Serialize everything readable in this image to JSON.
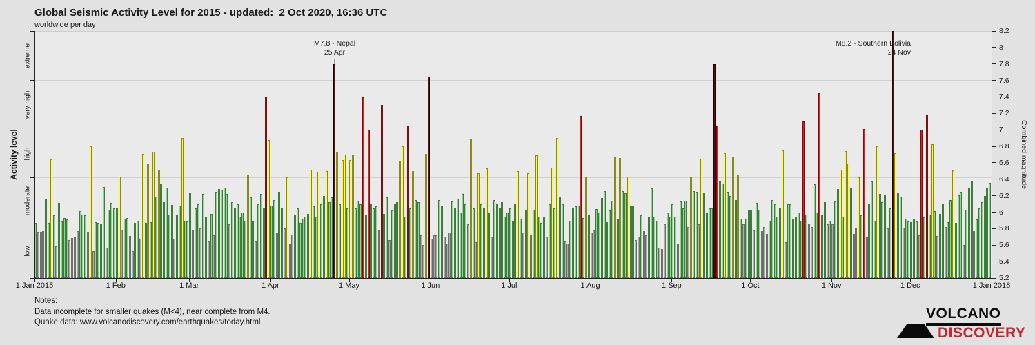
{
  "header": {
    "title": "Global Seismic Activity Level for 2015 - updated:  2 Oct 2020, 16:36 UTC",
    "subtitle": "worldwide per day"
  },
  "chart_data": {
    "type": "bar",
    "title": "Global Seismic Activity Level for 2015",
    "left_axis": {
      "label": "Activity level",
      "level_labels": [
        "extreme",
        "very high",
        "high",
        "moderate",
        "low"
      ],
      "level_boundaries_magnitude": [
        8.2,
        7.6,
        7.0,
        6.42,
        5.86,
        5.2
      ]
    },
    "right_axis": {
      "label": "Combined magnitude",
      "min": 5.2,
      "max": 8.2,
      "tick_step": 0.2
    },
    "level_colors": {
      "low": {
        "fill": "#adadad",
        "border": "#6e6e6e"
      },
      "moderate": {
        "fill": "#90d690",
        "border": "#3f7a3f"
      },
      "high": {
        "fill": "#ffff26",
        "border": "#8a8a1a"
      },
      "very_high": {
        "fill": "#e02020",
        "border": "#7c1010"
      },
      "extreme": {
        "fill": "#5a1212",
        "border": "#1d0505"
      }
    },
    "x_tick_labels": [
      "1 Jan 2015",
      "1 Feb",
      "1 Mar",
      "1 Apr",
      "1 May",
      "1 Jun",
      "1 Jul",
      "1 Aug",
      "1 Sep",
      "1 Oct",
      "1 Nov",
      "1 Dec",
      "1 Jan 2016"
    ],
    "month_start_day_index": [
      0,
      31,
      59,
      90,
      120,
      151,
      181,
      212,
      243,
      273,
      304,
      334,
      365
    ],
    "daily_values": [
      5.87,
      5.76,
      5.76,
      5.77,
      6.16,
      5.87,
      6.64,
      5.96,
      5.59,
      6.11,
      5.89,
      5.93,
      5.91,
      5.66,
      5.69,
      5.7,
      5.77,
      6.01,
      5.97,
      5.96,
      5.76,
      6.8,
      5.53,
      5.88,
      5.87,
      5.86,
      6.31,
      5.57,
      6.03,
      6.11,
      6.05,
      6.05,
      6.43,
      5.79,
      5.92,
      5.93,
      5.71,
      5.53,
      5.87,
      5.9,
      5.68,
      6.71,
      5.87,
      6.58,
      5.88,
      6.73,
      6.19,
      6.52,
      6.35,
      6.12,
      6.3,
      5.97,
      6.09,
      5.68,
      5.96,
      6.08,
      6.9,
      5.9,
      5.89,
      6.23,
      5.78,
      6.05,
      6.1,
      5.8,
      6.22,
      5.95,
      5.65,
      5.98,
      5.72,
      6.25,
      6.28,
      6.27,
      6.3,
      6.22,
      5.85,
      6.12,
      6.05,
      6.1,
      5.95,
      6.0,
      5.9,
      6.45,
      6.18,
      5.9,
      5.65,
      6.1,
      6.22,
      6.05,
      7.4,
      6.88,
      6.08,
      6.15,
      5.75,
      6.25,
      6.05,
      5.8,
      6.42,
      5.62,
      5.73,
      5.97,
      6.05,
      5.87,
      5.92,
      5.95,
      5.98,
      6.52,
      6.07,
      5.95,
      6.49,
      6.1,
      6.2,
      6.5,
      6.12,
      6.18,
      7.8,
      6.73,
      6.1,
      6.63,
      6.7,
      6.05,
      6.63,
      6.7,
      6.05,
      6.14,
      6.1,
      7.4,
      5.97,
      7.0,
      6.1,
      6.05,
      6.07,
      5.79,
      7.3,
      5.98,
      6.18,
      5.66,
      6.02,
      6.1,
      6.12,
      6.62,
      6.8,
      5.95,
      7.05,
      6.05,
      6.5,
      6.15,
      6.12,
      5.72,
      5.6,
      6.71,
      7.65,
      5.68,
      5.72,
      5.72,
      6.15,
      6.08,
      5.7,
      5.62,
      5.75,
      6.13,
      6.05,
      6.16,
      6.0,
      6.22,
      6.1,
      5.85,
      6.89,
      6.05,
      5.64,
      6.47,
      6.1,
      6.05,
      6.53,
      6.0,
      5.7,
      6.15,
      6.1,
      6.05,
      6.12,
      5.95,
      6.0,
      6.05,
      5.9,
      6.1,
      6.5,
      5.92,
      5.75,
      6.02,
      6.47,
      5.72,
      6.03,
      6.69,
      5.95,
      5.87,
      5.95,
      5.7,
      6.1,
      6.54,
      6.05,
      6.9,
      6.19,
      6.1,
      5.65,
      5.62,
      5.9,
      6.05,
      6.07,
      6.08,
      7.17,
      5.93,
      6.42,
      5.97,
      5.75,
      5.78,
      6.04,
      6.0,
      6.17,
      6.26,
      5.88,
      6.02,
      6.14,
      6.67,
      5.92,
      6.66,
      6.26,
      6.23,
      6.43,
      6.08,
      6.08,
      5.66,
      5.7,
      5.96,
      5.77,
      5.72,
      5.95,
      6.29,
      5.95,
      5.9,
      5.57,
      5.55,
      5.85,
      6.0,
      5.95,
      6.1,
      5.95,
      5.62,
      6.13,
      6.05,
      6.14,
      5.82,
      6.42,
      6.26,
      6.25,
      5.85,
      6.65,
      6.24,
      5.99,
      6.05,
      6.05,
      7.8,
      7.05,
      6.38,
      6.35,
      6.72,
      6.25,
      6.2,
      6.67,
      6.15,
      6.45,
      5.92,
      5.85,
      5.92,
      6.02,
      6.02,
      5.78,
      6.11,
      6.03,
      5.77,
      5.82,
      5.74,
      5.9,
      6.15,
      6.1,
      5.95,
      6.05,
      6.75,
      5.64,
      6.1,
      6.1,
      5.92,
      5.95,
      6.0,
      5.9,
      7.1,
      5.97,
      5.85,
      5.82,
      6.34,
      6.0,
      7.45,
      5.96,
      6.12,
      5.85,
      5.9,
      5.85,
      6.13,
      6.28,
      6.52,
      5.95,
      6.74,
      6.59,
      6.29,
      5.74,
      5.8,
      6.42,
      5.96,
      7.01,
      5.7,
      6.1,
      6.37,
      5.9,
      6.8,
      6.22,
      6.12,
      6.21,
      5.8,
      6.05,
      8.2,
      6.72,
      6.23,
      6.19,
      5.81,
      5.92,
      5.89,
      5.88,
      5.92,
      5.89,
      5.72,
      7.0,
      5.94,
      7.19,
      5.97,
      6.83,
      6.01,
      5.71,
      5.98,
      6.1,
      5.82,
      5.88,
      6.15,
      6.51,
      5.87,
      6.21,
      6.25,
      5.6,
      6.03,
      6.29,
      6.37,
      5.77,
      5.91,
      6.05,
      6.12,
      6.2,
      6.3,
      6.36
    ],
    "annotations": [
      {
        "id": "nepal",
        "line1": "M7.8 - Nepal",
        "line2": "25 Apr",
        "day_index": 114,
        "magnitude": 7.8
      },
      {
        "id": "bolivia",
        "line1": "M8.2 - Southern Bolivia",
        "line2": "24 Nov",
        "day_index": 327,
        "magnitude": 8.2
      }
    ]
  },
  "notes": {
    "line1": "Notes:",
    "line2": "Data incomplete for smaller quakes (M<4), near complete from M4.",
    "line3": "Quake data: www.volcanodiscovery.com/earthquakes/today.html"
  },
  "logo": {
    "line1": "VOLCANO",
    "line2": "DISCOVERY"
  }
}
